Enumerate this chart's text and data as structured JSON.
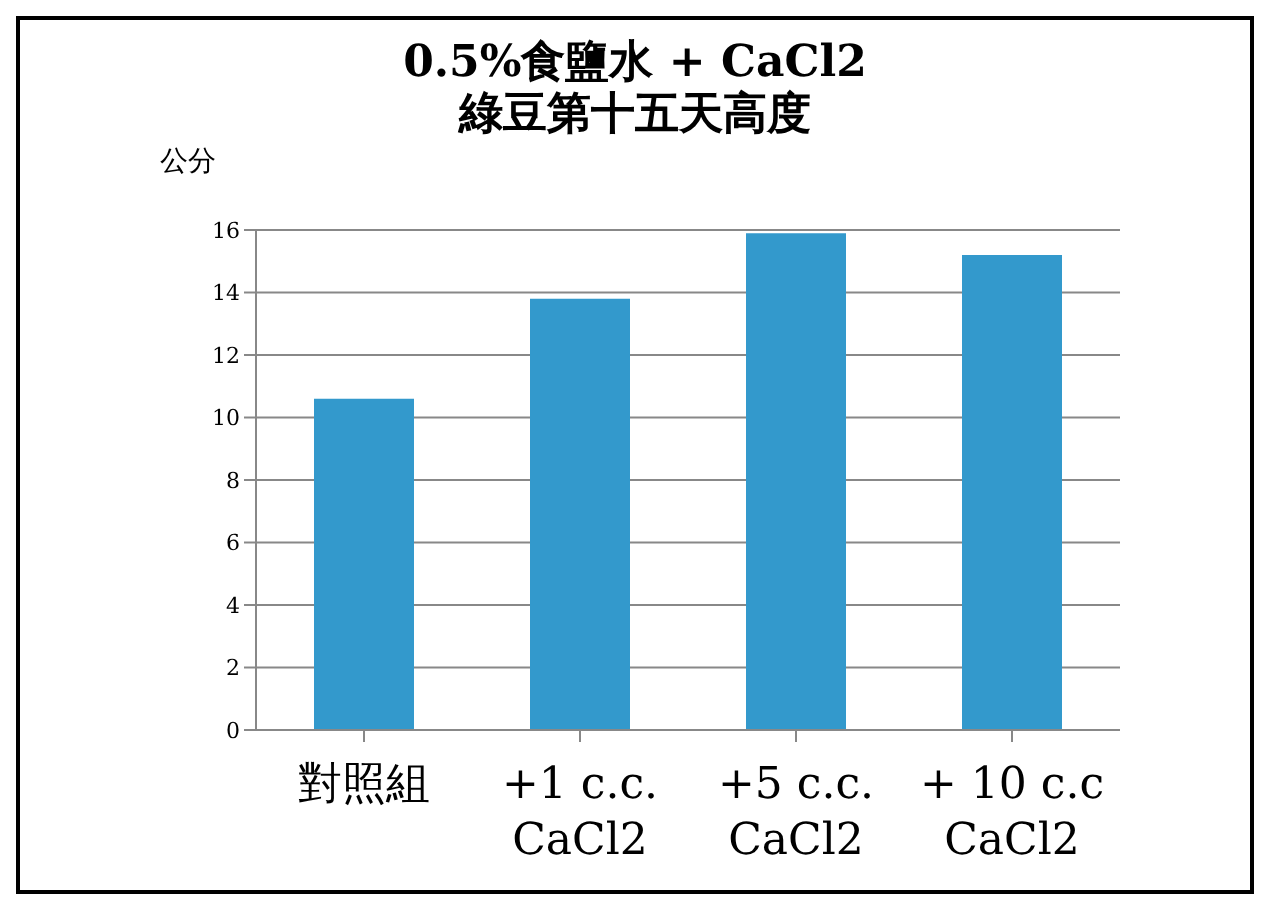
{
  "chart_data": {
    "type": "bar",
    "title": "0.5%食鹽水 + CaCl2\n綠豆第十五天高度",
    "ylabel": "公分",
    "categories": [
      "對照組",
      "+1 c.c.\nCaCl2",
      "+5 c.c.\nCaCl2",
      "+ 10 c.c\nCaCl2"
    ],
    "values": [
      10.6,
      13.8,
      15.9,
      15.2
    ],
    "color": "#3399cc",
    "ylim": [
      0,
      16
    ],
    "yticks": [
      0,
      2,
      4,
      6,
      8,
      10,
      12,
      14,
      16
    ],
    "grid": "y"
  }
}
